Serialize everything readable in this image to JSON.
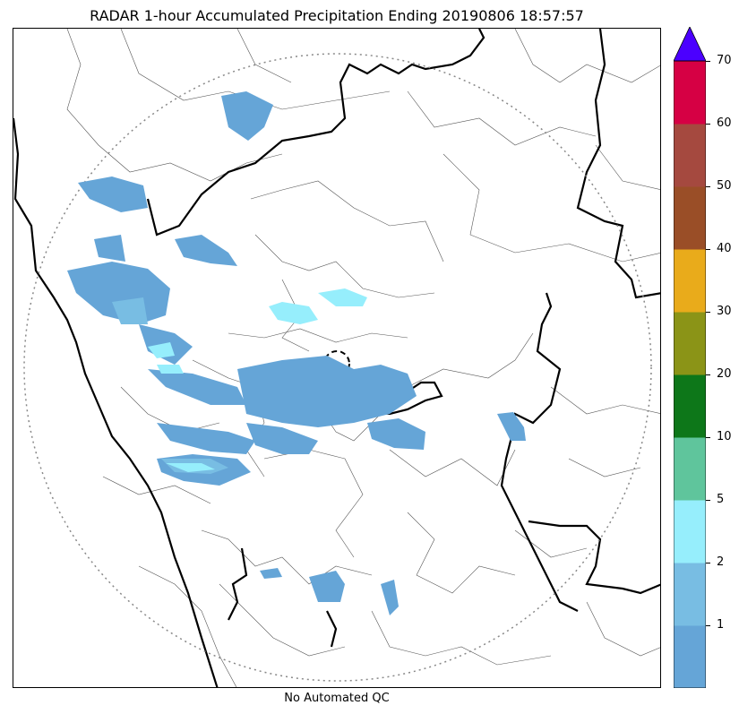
{
  "title": "RADAR 1-hour Accumulated Precipitation Ending 20190806 18:57:57",
  "footer": "No Automated QC",
  "colorbar": {
    "ticks": [
      "1",
      "2",
      "5",
      "10",
      "20",
      "30",
      "40",
      "50",
      "60",
      "70"
    ],
    "colors": [
      "#65a5d7",
      "#78bde3",
      "#96eefc",
      "#5fc59c",
      "#0d7719",
      "#8b9417",
      "#e9ab1b",
      "#9a4e27",
      "#a5493f",
      "#d60044"
    ],
    "extend_color": "#4b00ff"
  },
  "map": {
    "range_ring": "dotted",
    "radar_site_marker": "dashed-circle",
    "precip_colors": {
      "light": "#65a5d7",
      "medium": "#78bde3",
      "high": "#96eefc",
      "boundary": "#000000"
    }
  }
}
